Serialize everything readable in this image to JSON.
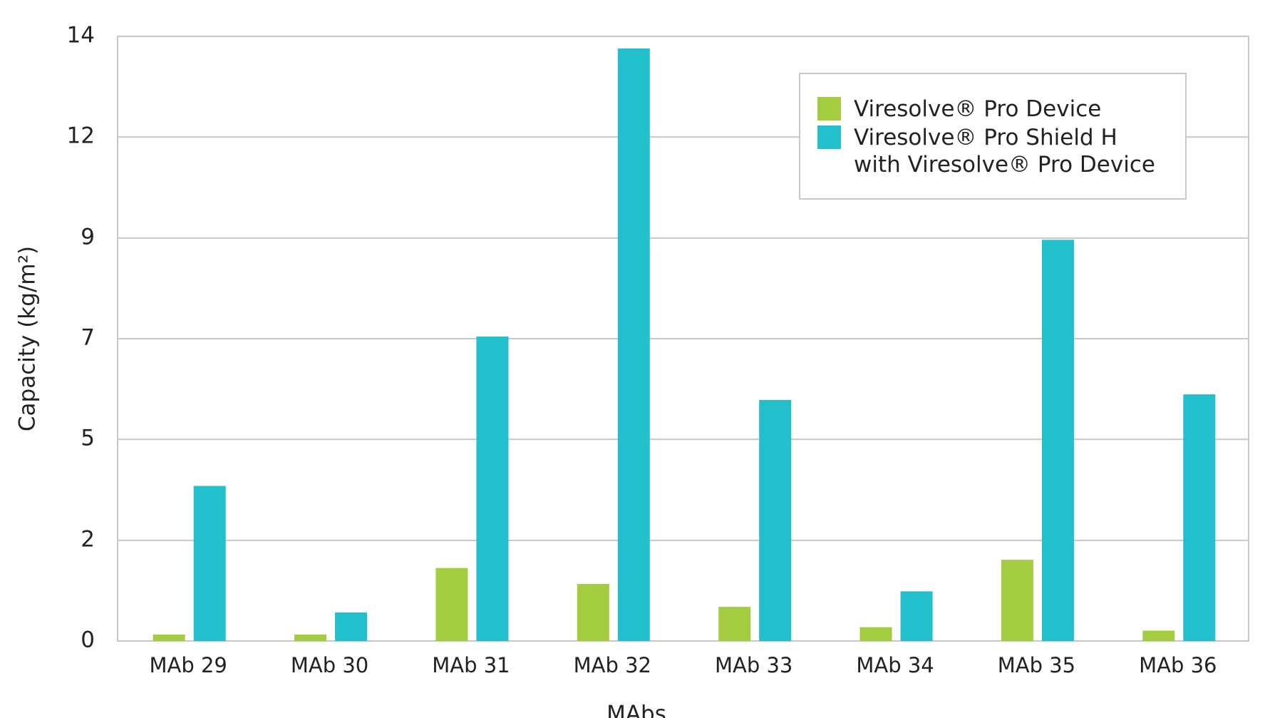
{
  "chart_data": {
    "type": "bar",
    "xlabel": "MAbs",
    "ylabel": "Capacity (kg/m²)",
    "categories": [
      "MAb 29",
      "MAb 30",
      "MAb 31",
      "MAb 32",
      "MAb 33",
      "MAb 34",
      "MAb 35",
      "MAb 36"
    ],
    "series": [
      {
        "name": "Viresolve® Pro Device",
        "color": "#a4cc40",
        "values": [
          0.15,
          0.15,
          1.69,
          1.32,
          0.79,
          0.32,
          1.88,
          0.24
        ]
      },
      {
        "name": "Viresolve® Pro Shield H with Viresolve® Pro Device",
        "color": "#22bfcc",
        "values": [
          3.59,
          0.66,
          7.05,
          13.72,
          5.58,
          1.15,
          9.29,
          5.71
        ]
      }
    ],
    "ylim": [
      0,
      14
    ],
    "yticks": [
      0,
      {
        "value": 2.33,
        "label": "2"
      },
      {
        "value": 4.67,
        "label": "5"
      },
      7,
      {
        "value": 9.33,
        "label": "9"
      },
      {
        "value": 11.67,
        "label": "12"
      },
      14
    ],
    "grid": true,
    "legend": "upper right"
  }
}
